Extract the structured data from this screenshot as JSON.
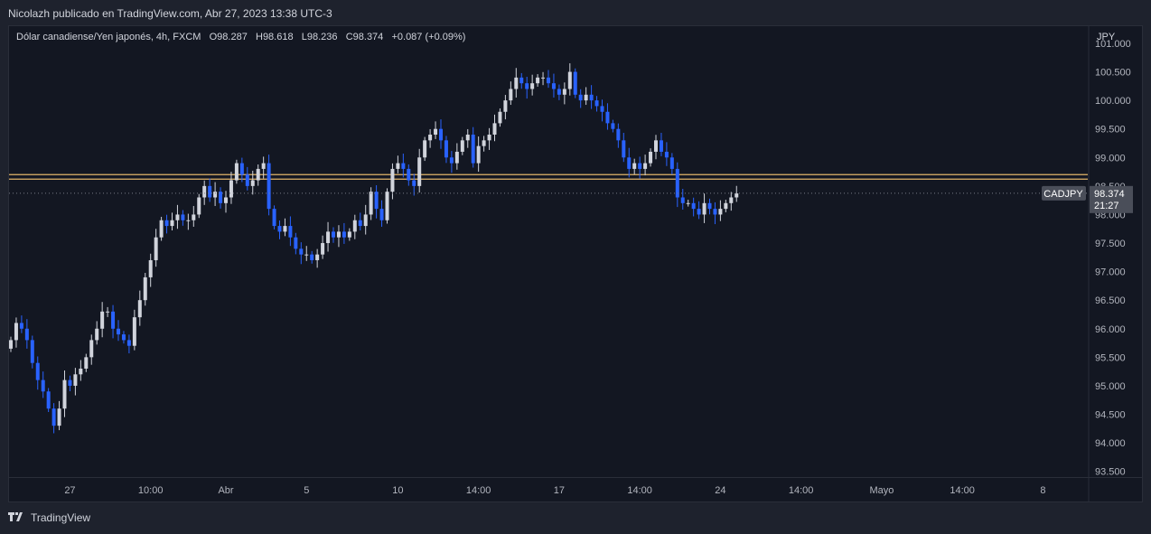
{
  "header": {
    "publisher_line": "Nicolazh publicado en TradingView.com, Abr 27, 2023 13:38 UTC-3"
  },
  "legend": {
    "symbol_desc": "Dólar canadiense/Yen japonés, 4h, FXCM",
    "open": "O98.287",
    "high": "H98.618",
    "low": "L98.236",
    "close": "C98.374",
    "change": "+0.087 (+0.09%)"
  },
  "footer": {
    "brand": "TradingView",
    "logo_icon": "tradingview-logo-icon"
  },
  "price_scale": {
    "currency": "JPY",
    "symbol_tag": "CADJPY",
    "last_price": "98.374",
    "countdown": "21:27"
  },
  "colors": {
    "up": "#d1d4dc",
    "down": "#2962ff",
    "level": "#e2b46a",
    "background": "#131722"
  },
  "chart_data": {
    "type": "candlestick",
    "ylim": [
      93.4,
      101.3
    ],
    "yticks": [
      "93.500",
      "94.000",
      "94.500",
      "95.000",
      "95.500",
      "96.000",
      "96.500",
      "97.000",
      "97.500",
      "98.000",
      "98.500",
      "99.000",
      "99.500",
      "100.000",
      "100.500",
      "101.000"
    ],
    "xticks": [
      {
        "label": "27",
        "i": 11
      },
      {
        "label": "10:00",
        "i": 26
      },
      {
        "label": "Abr",
        "i": 40
      },
      {
        "label": "5",
        "i": 55
      },
      {
        "label": "10",
        "i": 72
      },
      {
        "label": "14:00",
        "i": 87
      },
      {
        "label": "17",
        "i": 102
      },
      {
        "label": "14:00",
        "i": 117
      },
      {
        "label": "24",
        "i": 132
      },
      {
        "label": "14:00",
        "i": 147
      },
      {
        "label": "Mayo",
        "i": 162
      },
      {
        "label": "14:00",
        "i": 177
      },
      {
        "label": "8",
        "i": 192
      }
    ],
    "horizontal_levels": [
      98.62,
      98.7
    ],
    "last_price": 98.374,
    "close_series": [
      95.8,
      96.1,
      96.0,
      95.8,
      95.4,
      95.1,
      94.9,
      94.6,
      94.3,
      94.6,
      95.1,
      95.0,
      95.2,
      95.3,
      95.5,
      95.8,
      96.0,
      96.3,
      96.3,
      96.0,
      95.9,
      95.8,
      95.7,
      96.2,
      96.5,
      96.9,
      97.2,
      97.6,
      97.9,
      97.8,
      97.9,
      98.0,
      97.9,
      97.9,
      98.0,
      98.3,
      98.5,
      98.3,
      98.4,
      98.2,
      98.3,
      98.6,
      98.9,
      98.7,
      98.5,
      98.6,
      98.8,
      98.9,
      98.1,
      97.8,
      97.7,
      97.8,
      97.6,
      97.4,
      97.3,
      97.3,
      97.2,
      97.3,
      97.5,
      97.7,
      97.6,
      97.7,
      97.6,
      97.7,
      97.9,
      97.8,
      98.0,
      98.4,
      98.1,
      97.9,
      98.4,
      98.8,
      98.9,
      98.8,
      98.6,
      98.5,
      99.0,
      99.3,
      99.4,
      99.5,
      99.3,
      99.0,
      98.9,
      99.1,
      99.3,
      99.4,
      98.9,
      99.2,
      99.3,
      99.4,
      99.6,
      99.8,
      100.0,
      100.2,
      100.4,
      100.3,
      100.2,
      100.3,
      100.4,
      100.4,
      100.3,
      100.2,
      100.1,
      100.2,
      100.5,
      100.1,
      100.0,
      100.1,
      100.0,
      99.9,
      99.8,
      99.6,
      99.5,
      99.3,
      99.0,
      98.8,
      98.9,
      98.8,
      98.9,
      99.1,
      99.3,
      99.1,
      99.0,
      98.8,
      98.3,
      98.2,
      98.2,
      98.1,
      98.0,
      98.2,
      98.1,
      98.0,
      98.1,
      98.2,
      98.3,
      98.37
    ]
  }
}
